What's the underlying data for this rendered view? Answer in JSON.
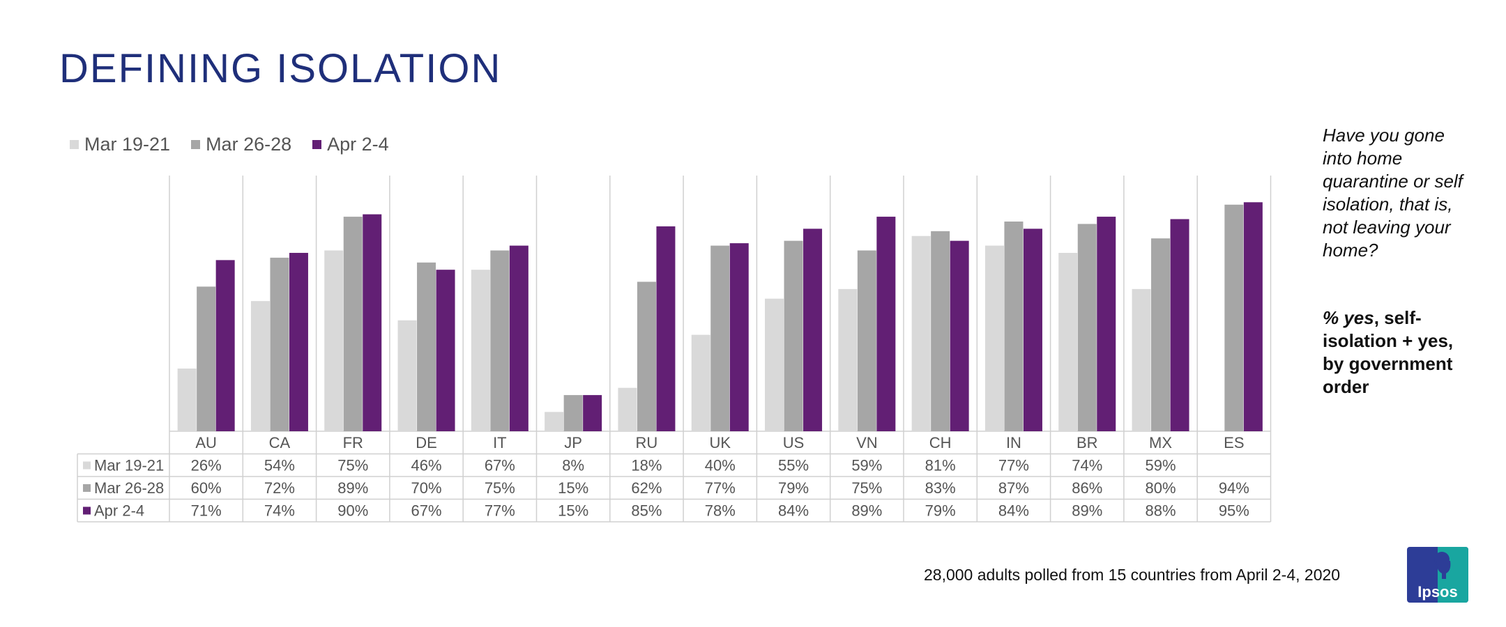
{
  "title": "DEFINING ISOLATION",
  "question": "Have you gone into home quarantine or self isolation, that is, not leaving your home?",
  "metric_prefix": "% yes",
  "metric_rest": ", self-isolation + yes, by government order",
  "footer": "28,000 adults polled from 15 countries from April 2-4, 2020",
  "logo_text": "Ipsos",
  "colors": {
    "title": "#1f2f7a",
    "series": [
      "#d9d9d9",
      "#a6a6a6",
      "#621f74"
    ]
  },
  "chart_data": {
    "type": "bar",
    "categories": [
      "AU",
      "CA",
      "FR",
      "DE",
      "IT",
      "JP",
      "RU",
      "UK",
      "US",
      "VN",
      "CH",
      "IN",
      "BR",
      "MX",
      "ES"
    ],
    "series": [
      {
        "name": "Mar 19-21",
        "values": [
          26,
          54,
          75,
          46,
          67,
          8,
          18,
          40,
          55,
          59,
          81,
          77,
          74,
          59,
          null
        ]
      },
      {
        "name": "Mar 26-28",
        "values": [
          60,
          72,
          89,
          70,
          75,
          15,
          62,
          77,
          79,
          75,
          83,
          87,
          86,
          80,
          94
        ]
      },
      {
        "name": "Apr 2-4",
        "values": [
          71,
          74,
          90,
          67,
          77,
          15,
          85,
          78,
          84,
          89,
          79,
          84,
          89,
          88,
          95
        ]
      }
    ],
    "ylim": [
      0,
      100
    ],
    "grid": false,
    "legend": "top-left",
    "data_table": true,
    "value_format": "percent"
  }
}
